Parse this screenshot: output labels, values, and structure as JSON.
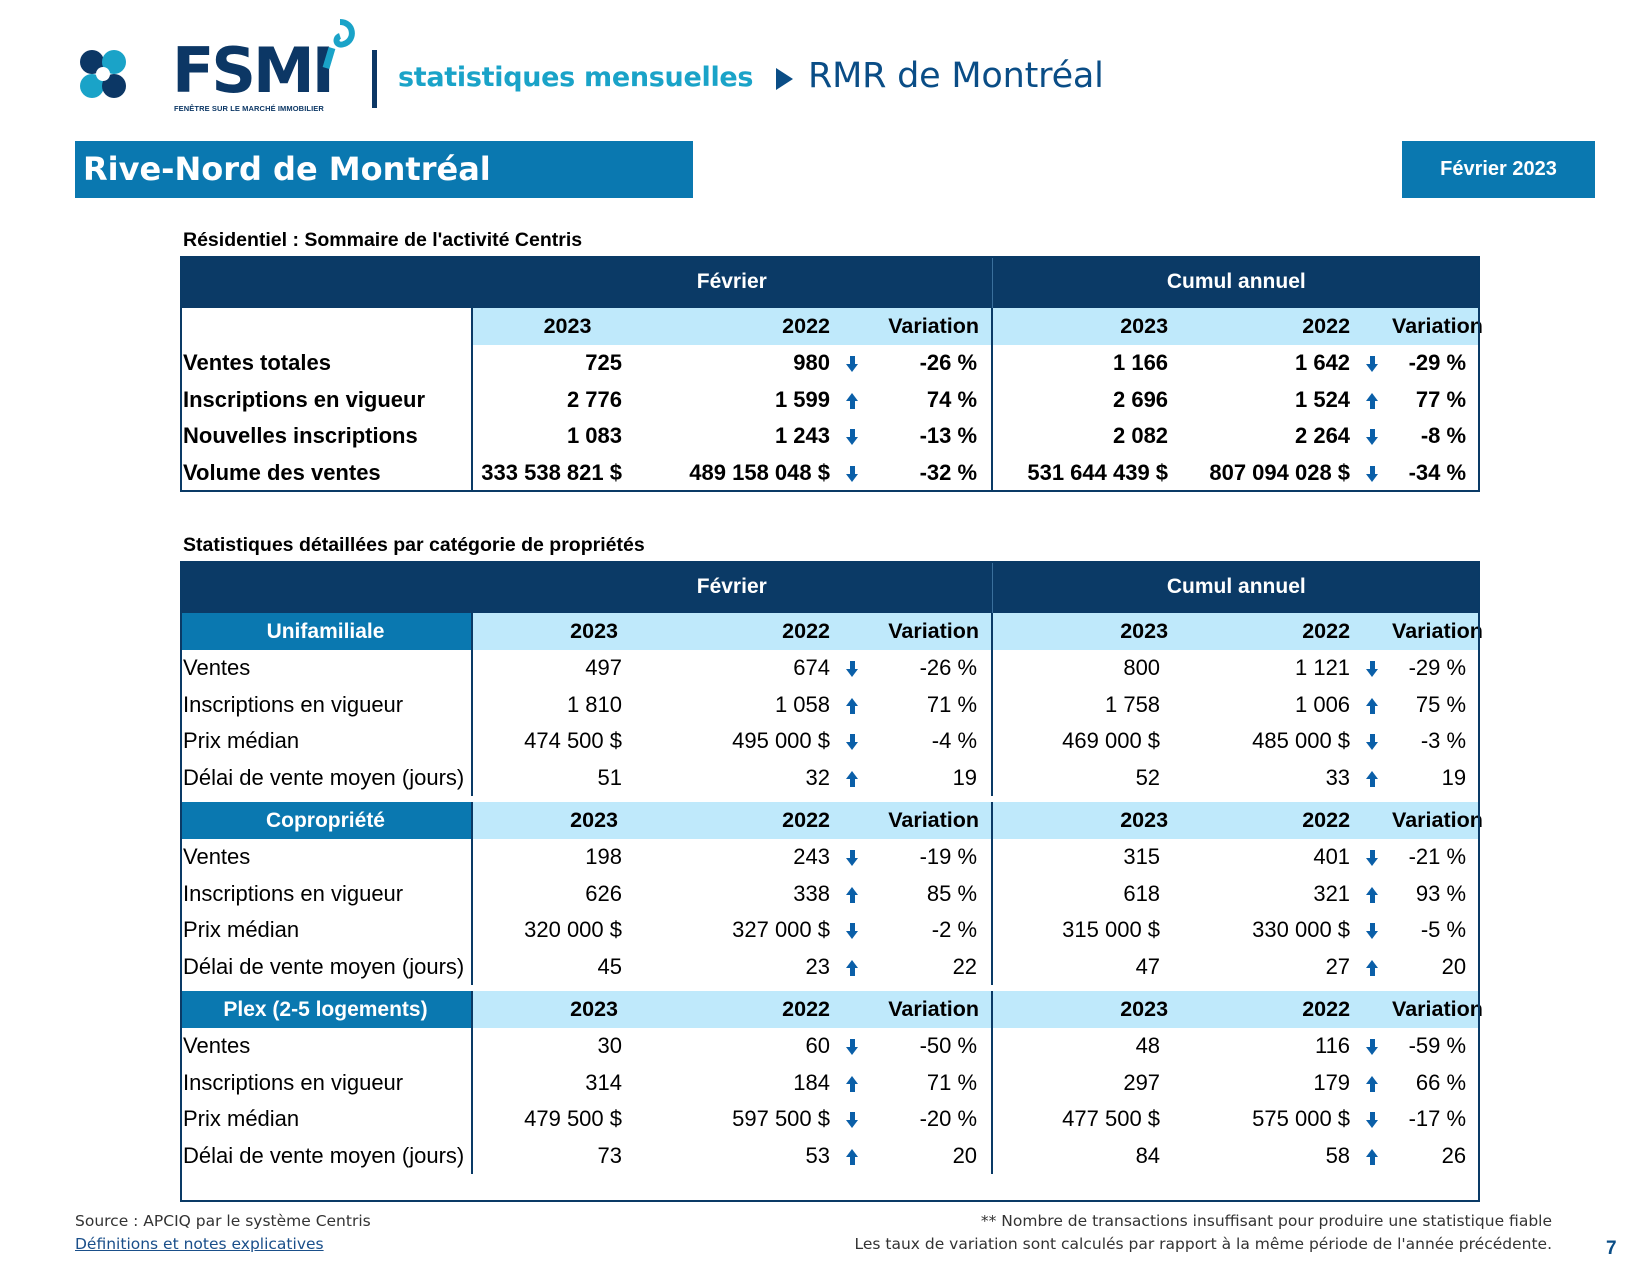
{
  "header": {
    "logo_text": "FSMI",
    "logo_subtitle": "FENÊTRE SUR LE MARCHÉ IMMOBILIER",
    "stats_label": "statistiques mensuelles",
    "region": "RMR de Montréal",
    "title": "Rive-Nord de Montréal",
    "period": "Février 2023"
  },
  "summary": {
    "section_title": "Résidentiel : Sommaire de l'activité Centris",
    "group_month": "Février",
    "group_ytd": "Cumul annuel",
    "col_2023": "2023",
    "col_2022": "2022",
    "col_variation": "Variation",
    "rows": [
      {
        "label": "Ventes totales",
        "m23": "725",
        "m22": "980",
        "mdir": "down",
        "mvar": "-26 %",
        "y23": "1 166",
        "y22": "1 642",
        "ydir": "down",
        "yvar": "-29 %"
      },
      {
        "label": "Inscriptions en vigueur",
        "m23": "2 776",
        "m22": "1 599",
        "mdir": "up",
        "mvar": "74 %",
        "y23": "2 696",
        "y22": "1 524",
        "ydir": "up",
        "yvar": "77 %"
      },
      {
        "label": "Nouvelles inscriptions",
        "m23": "1 083",
        "m22": "1 243",
        "mdir": "down",
        "mvar": "-13 %",
        "y23": "2 082",
        "y22": "2 264",
        "ydir": "down",
        "yvar": "-8 %"
      },
      {
        "label": "Volume des ventes",
        "m23": "333 538 821  $",
        "m22": "489 158 048  $",
        "mdir": "down",
        "mvar": "-32 %",
        "y23": "531 644 439  $",
        "y22": "807 094 028  $",
        "ydir": "down",
        "yvar": "-34 %"
      }
    ]
  },
  "detail": {
    "section_title": "Statistiques détaillées par catégorie de propriétés",
    "group_month": "Février",
    "group_ytd": "Cumul annuel",
    "col_2023": "2023",
    "col_2022": "2022",
    "col_variation": "Variation",
    "categories": [
      {
        "name": "Unifamiliale",
        "rows": [
          {
            "label": "Ventes",
            "m23": "497",
            "m22": "674",
            "mdir": "down",
            "mvar": "-26 %",
            "y23": "800",
            "y22": "1 121",
            "ydir": "down",
            "yvar": "-29 %"
          },
          {
            "label": "Inscriptions en vigueur",
            "m23": "1 810",
            "m22": "1 058",
            "mdir": "up",
            "mvar": "71 %",
            "y23": "1 758",
            "y22": "1 006",
            "ydir": "up",
            "yvar": "75 %"
          },
          {
            "label": "Prix médian",
            "m23": "474 500 $",
            "m22": "495 000 $",
            "mdir": "down",
            "mvar": "-4 %",
            "y23": "469 000 $",
            "y22": "485 000 $",
            "ydir": "down",
            "yvar": "-3 %"
          },
          {
            "label": "Délai de vente moyen (jours)",
            "m23": "51",
            "m22": "32",
            "mdir": "up",
            "mvar": "19",
            "y23": "52",
            "y22": "33",
            "ydir": "up",
            "yvar": "19"
          }
        ]
      },
      {
        "name": "Copropriété",
        "rows": [
          {
            "label": "Ventes",
            "m23": "198",
            "m22": "243",
            "mdir": "down",
            "mvar": "-19 %",
            "y23": "315",
            "y22": "401",
            "ydir": "down",
            "yvar": "-21 %"
          },
          {
            "label": "Inscriptions en vigueur",
            "m23": "626",
            "m22": "338",
            "mdir": "up",
            "mvar": "85 %",
            "y23": "618",
            "y22": "321",
            "ydir": "up",
            "yvar": "93 %"
          },
          {
            "label": "Prix médian",
            "m23": "320 000 $",
            "m22": "327 000 $",
            "mdir": "down",
            "mvar": "-2 %",
            "y23": "315 000 $",
            "y22": "330 000 $",
            "ydir": "down",
            "yvar": "-5 %"
          },
          {
            "label": "Délai de vente moyen (jours)",
            "m23": "45",
            "m22": "23",
            "mdir": "up",
            "mvar": "22",
            "y23": "47",
            "y22": "27",
            "ydir": "up",
            "yvar": "20"
          }
        ]
      },
      {
        "name": "Plex (2-5 logements)",
        "rows": [
          {
            "label": "Ventes",
            "m23": "30",
            "m22": "60",
            "mdir": "down",
            "mvar": "-50 %",
            "y23": "48",
            "y22": "116",
            "ydir": "down",
            "yvar": "-59 %"
          },
          {
            "label": "Inscriptions en vigueur",
            "m23": "314",
            "m22": "184",
            "mdir": "up",
            "mvar": "71 %",
            "y23": "297",
            "y22": "179",
            "ydir": "up",
            "yvar": "66 %"
          },
          {
            "label": "Prix médian",
            "m23": "479 500 $",
            "m22": "597 500 $",
            "mdir": "down",
            "mvar": "-20 %",
            "y23": "477 500 $",
            "y22": "575 000 $",
            "ydir": "down",
            "yvar": "-17 %"
          },
          {
            "label": "Délai de vente moyen (jours)",
            "m23": "73",
            "m22": "53",
            "mdir": "up",
            "mvar": "20",
            "y23": "84",
            "y22": "58",
            "ydir": "up",
            "yvar": "26"
          }
        ]
      }
    ]
  },
  "footer": {
    "source": "Source : APCIQ par le système Centris",
    "definitions_link": "Définitions et notes explicatives",
    "note_insufficient": "** Nombre de transactions insuffisant pour produire une statistique fiable",
    "note_variation": "Les taux de variation sont calculés par rapport à la même période de l'année précédente.",
    "page_number": "7"
  },
  "colors": {
    "navy": "#0b3a66",
    "blue": "#0a78b0",
    "light": "#bfe9fb",
    "accent": "#1aa3c8"
  },
  "icons": {
    "arrow_down": "arrow-down-icon",
    "arrow_up": "arrow-up-icon"
  }
}
